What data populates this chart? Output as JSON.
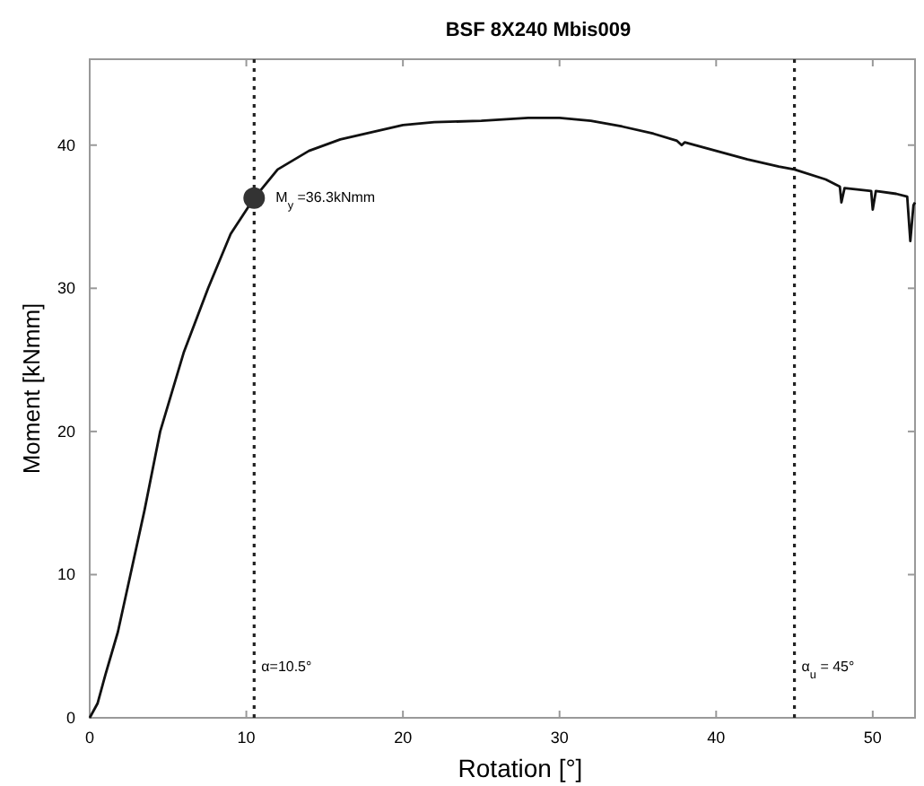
{
  "chart_data": {
    "type": "line",
    "title": "BSF 8X240 Mbis009",
    "xlabel": "Rotation [°]",
    "ylabel": "Moment [kNmm]",
    "xlim": [
      0,
      52.7
    ],
    "ylim": [
      0,
      46
    ],
    "xticks": [
      0,
      10,
      20,
      30,
      40,
      50
    ],
    "yticks": [
      0,
      10,
      20,
      30,
      40
    ],
    "grid": false,
    "marker": "none",
    "line_style": "solid",
    "series": [
      {
        "color": "#111111",
        "x": [
          0,
          0.5,
          1,
          1.8,
          2.6,
          3.5,
          4.5,
          6,
          7.56,
          9,
          10.5,
          12,
          14,
          16,
          18,
          20,
          22,
          25,
          28,
          30,
          32,
          34,
          36,
          37.5,
          37.8,
          38,
          40,
          42,
          44,
          45,
          47,
          47.9,
          48,
          48.2,
          49,
          49.9,
          50,
          50.2,
          51.5,
          52.2,
          52.4,
          52.6,
          52.7
        ],
        "values": [
          0,
          1,
          3,
          6,
          10,
          14.5,
          20,
          25.5,
          30,
          33.8,
          36.3,
          38.3,
          39.6,
          40.4,
          40.9,
          41.4,
          41.6,
          41.7,
          41.9,
          41.9,
          41.7,
          41.3,
          40.8,
          40.3,
          40,
          40.2,
          39.6,
          39,
          38.5,
          38.3,
          37.6,
          37.1,
          36,
          37,
          36.9,
          36.8,
          35.5,
          36.8,
          36.6,
          36.4,
          33.3,
          35.8,
          36
        ]
      },
      {
        "type": "scatter",
        "color": "#333333",
        "marker": "circle",
        "x": [
          10.5
        ],
        "values": [
          36.3
        ]
      }
    ],
    "ref_lines": [
      {
        "axis": "x",
        "value": 10.5,
        "label": "α=10.5°",
        "line_style": "dotted",
        "color": "#222222"
      },
      {
        "axis": "x",
        "value": 45,
        "label": "α$_{u}$ = 45°",
        "line_style": "dotted",
        "color": "#222222"
      }
    ],
    "annotations": [
      {
        "text": "M$_{y}$ =36.3kNmm",
        "x": 10.5,
        "y": 36.3
      }
    ]
  }
}
